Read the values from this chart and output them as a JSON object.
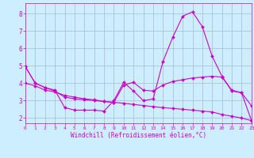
{
  "bg_color": "#cceeff",
  "line_color": "#cc00cc",
  "grid_color": "#aabbcc",
  "xlabel": "Windchill (Refroidissement éolien,°C)",
  "xlabel_color": "#cc00cc",
  "tick_color": "#cc00cc",
  "xlim": [
    0,
    23
  ],
  "ylim": [
    1.7,
    8.6
  ],
  "yticks": [
    2,
    3,
    4,
    5,
    6,
    7,
    8
  ],
  "xticks": [
    0,
    1,
    2,
    3,
    4,
    5,
    6,
    7,
    8,
    9,
    10,
    11,
    12,
    13,
    14,
    15,
    16,
    17,
    18,
    19,
    20,
    21,
    22,
    23
  ],
  "series": [
    [
      4.95,
      4.0,
      3.75,
      3.6,
      2.6,
      2.45,
      2.45,
      2.45,
      2.4,
      3.0,
      4.05,
      3.55,
      3.0,
      3.1,
      5.25,
      6.65,
      7.85,
      8.1,
      7.25,
      5.55,
      4.4,
      3.55,
      3.45,
      2.7
    ],
    [
      4.0,
      3.85,
      3.6,
      3.5,
      3.3,
      3.2,
      3.1,
      3.05,
      2.95,
      2.9,
      3.9,
      4.05,
      3.6,
      3.55,
      3.9,
      4.1,
      4.2,
      4.3,
      4.35,
      4.4,
      4.35,
      3.6,
      3.45,
      1.85
    ],
    [
      4.95,
      4.0,
      3.75,
      3.55,
      3.2,
      3.1,
      3.05,
      3.0,
      2.95,
      2.9,
      2.85,
      2.78,
      2.72,
      2.65,
      2.6,
      2.55,
      2.5,
      2.45,
      2.4,
      2.35,
      2.2,
      2.1,
      2.0,
      1.85
    ]
  ]
}
